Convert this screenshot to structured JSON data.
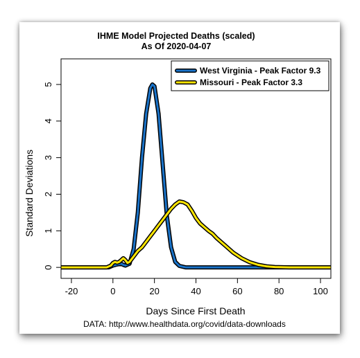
{
  "chart_data": {
    "type": "line",
    "title": "IHME Model Projected Deaths (scaled)",
    "subtitle": "As Of 2020-04-07",
    "xlabel": "Days Since First Death",
    "ylabel": "Standard Deviations",
    "source": "DATA: http://www.healthdata.org/covid/data-downloads",
    "xlim": [
      -25,
      105
    ],
    "ylim": [
      -0.3,
      5.7
    ],
    "x_ticks": [
      -20,
      0,
      20,
      40,
      60,
      80,
      100
    ],
    "y_ticks": [
      0,
      1,
      2,
      3,
      4,
      5
    ],
    "grid": false,
    "legend_position": "top-right",
    "series": [
      {
        "name": "West Virginia - Peak Factor 9.3",
        "color": "#1a73c9",
        "x": [
          -25,
          -2,
          0,
          2,
          4,
          5,
          6,
          8,
          10,
          12,
          14,
          16,
          18,
          19,
          20,
          22,
          24,
          26,
          28,
          30,
          32,
          35,
          40,
          60,
          80,
          105
        ],
        "y": [
          0,
          0,
          0.05,
          0.08,
          0.1,
          0.07,
          0.05,
          0.1,
          0.5,
          1.5,
          3.0,
          4.2,
          4.9,
          5.0,
          4.95,
          4.2,
          2.8,
          1.4,
          0.55,
          0.15,
          0.04,
          0,
          0,
          0,
          0,
          0
        ]
      },
      {
        "name": "Missouri - Peak Factor 3.3",
        "color": "#ffe600",
        "x": [
          -25,
          -3,
          -1,
          0,
          1,
          2,
          3,
          4,
          5,
          6,
          7,
          8,
          10,
          12,
          14,
          16,
          18,
          20,
          22,
          24,
          26,
          28,
          30,
          32,
          34,
          36,
          38,
          40,
          42,
          44,
          46,
          48,
          50,
          54,
          58,
          62,
          66,
          70,
          74,
          78,
          85,
          105
        ],
        "y": [
          0,
          0,
          0.05,
          0.12,
          0.15,
          0.13,
          0.15,
          0.2,
          0.25,
          0.2,
          0.12,
          0.15,
          0.3,
          0.45,
          0.55,
          0.7,
          0.85,
          1.0,
          1.15,
          1.3,
          1.45,
          1.6,
          1.72,
          1.8,
          1.78,
          1.72,
          1.55,
          1.35,
          1.2,
          1.1,
          1.0,
          0.92,
          0.8,
          0.6,
          0.4,
          0.25,
          0.14,
          0.07,
          0.03,
          0.01,
          0,
          0
        ]
      }
    ]
  }
}
